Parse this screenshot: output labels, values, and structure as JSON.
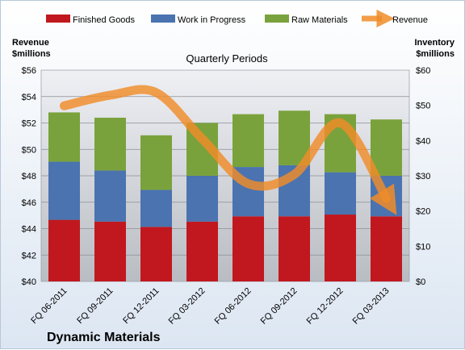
{
  "company": "Dynamic Materials",
  "chart_data": {
    "type": "bar",
    "stacked": true,
    "title": "Quarterly Periods",
    "categories": [
      "FQ 06-2011",
      "FQ 09-2011",
      "FQ 12-2011",
      "FQ 03-2012",
      "FQ 06-2012",
      "FQ 09-2012",
      "FQ 12-2012",
      "FQ 03-2013"
    ],
    "left_axis": {
      "label_line1": "Revenue",
      "label_line2": "$millions",
      "min": 40,
      "max": 56,
      "ticks": [
        "$40",
        "$42",
        "$44",
        "$46",
        "$48",
        "$50",
        "$52",
        "$54",
        "$56"
      ]
    },
    "right_axis": {
      "label_line1": "Inventory",
      "label_line2": "$millions",
      "min": 0,
      "max": 60,
      "ticks": [
        "$0",
        "$10",
        "$20",
        "$30",
        "$40",
        "$50",
        "$60"
      ]
    },
    "series": [
      {
        "name": "Finished Goods",
        "color": "#c0181e",
        "values": [
          17.5,
          17.0,
          15.5,
          17.0,
          18.5,
          18.5,
          19.0,
          18.5
        ]
      },
      {
        "name": "Work in Progress",
        "color": "#4a73b0",
        "values": [
          16.5,
          14.5,
          10.5,
          13.0,
          14.0,
          14.5,
          12.0,
          11.5
        ]
      },
      {
        "name": "Raw Materials",
        "color": "#7aa23c",
        "values": [
          14.0,
          15.0,
          15.5,
          15.0,
          15.0,
          15.5,
          16.5,
          16.0
        ]
      }
    ],
    "line_series": {
      "name": "Revenue",
      "color": "#f08c28",
      "axis": "left",
      "values": [
        53.3,
        54.1,
        54.3,
        50.8,
        47.4,
        48.1,
        52.0,
        46.3
      ]
    },
    "legend": "top",
    "grid": true
  }
}
